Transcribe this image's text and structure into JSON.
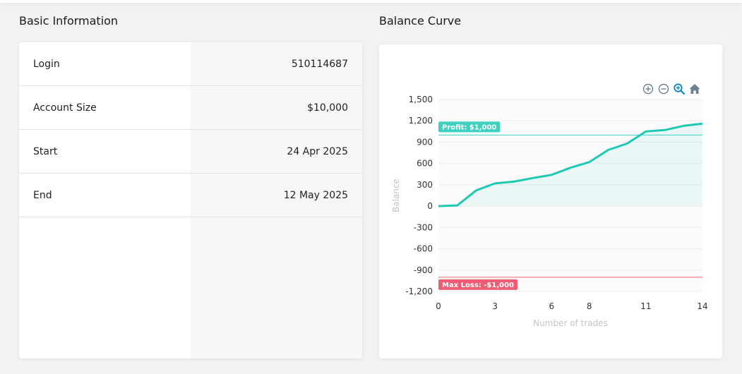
{
  "sections": {
    "basic_title": "Basic Information",
    "balance_title": "Balance Curve"
  },
  "info_rows": [
    {
      "label": "Login",
      "value": "510114687"
    },
    {
      "label": "Account Size",
      "value": "$10,000"
    },
    {
      "label": "Start",
      "value": "24 Apr 2025"
    },
    {
      "label": "End",
      "value": "12 May 2025"
    }
  ],
  "toolbar": [
    "zoom-in-icon",
    "zoom-out-icon",
    "zoom-select-icon",
    "home-icon"
  ],
  "colors": {
    "line": "#1ec9b3",
    "profit": "#3fd1bf",
    "loss": "#ef5d74",
    "toolbar_icon": "#6e8192",
    "toolbar_active": "#0b84c6"
  },
  "chart_data": {
    "type": "area",
    "xlabel": "Number of trades",
    "ylabel": "Balance",
    "xlim": [
      0,
      14
    ],
    "ylim": [
      -1200,
      1500
    ],
    "x_ticks": [
      "0",
      "3",
      "6",
      "8",
      "11",
      "14"
    ],
    "y_ticks": [
      "1,500",
      "1,200",
      "900",
      "600",
      "300",
      "0",
      "-300",
      "-600",
      "-900",
      "-1,200"
    ],
    "series": [
      {
        "x": [
          0,
          1,
          2,
          3,
          4,
          5,
          6,
          7,
          8,
          9,
          10,
          11,
          12,
          13,
          14
        ],
        "values": [
          0,
          10,
          220,
          320,
          345,
          395,
          440,
          540,
          620,
          790,
          880,
          1050,
          1070,
          1130,
          1160
        ]
      }
    ],
    "annotations": [
      {
        "label": "Profit: $1,000",
        "y": 1000
      },
      {
        "label": "Max Loss: -$1,000",
        "y": -1000
      }
    ]
  }
}
